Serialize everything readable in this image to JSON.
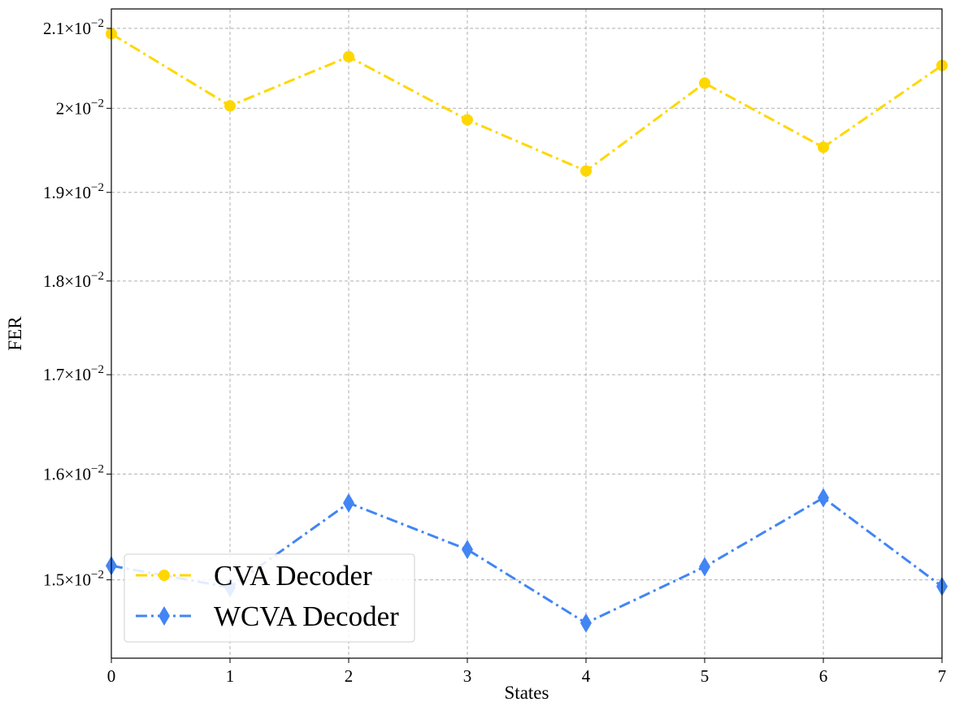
{
  "chart_data": {
    "type": "line",
    "xlabel": "States",
    "ylabel": "FER",
    "yscale": "log",
    "xlim": [
      0,
      7
    ],
    "ylim": [
      0.0143,
      0.02125
    ],
    "xticks": [
      0,
      1,
      2,
      3,
      4,
      5,
      6,
      7
    ],
    "x_tick_labels": [
      "0",
      "1",
      "2",
      "3",
      "4",
      "5",
      "6",
      "7"
    ],
    "yticks": [
      {
        "value": 0.015,
        "mantissa": "1.5",
        "exp": "−2"
      },
      {
        "value": 0.016,
        "mantissa": "1.6",
        "exp": "−2"
      },
      {
        "value": 0.017,
        "mantissa": "1.7",
        "exp": "−2"
      },
      {
        "value": 0.018,
        "mantissa": "1.8",
        "exp": "−2"
      },
      {
        "value": 0.019,
        "mantissa": "1.9",
        "exp": "−2"
      },
      {
        "value": 0.02,
        "mantissa": "2",
        "exp": "−2"
      },
      {
        "value": 0.021,
        "mantissa": "2.1",
        "exp": "−2"
      }
    ],
    "times_symbol": "×10",
    "grid": true,
    "legend_position": "lower-left",
    "x": [
      0,
      1,
      2,
      3,
      4,
      5,
      6,
      7
    ],
    "series": [
      {
        "name": "CVA Decoder",
        "marker": "circle",
        "line_style": "dash-dot",
        "color": "#FFD700",
        "values": [
          0.02093,
          0.02003,
          0.02064,
          0.01986,
          0.01925,
          0.02031,
          0.01953,
          0.02053
        ]
      },
      {
        "name": "WCVA Decoder",
        "marker": "diamond",
        "line_style": "dash-dot",
        "color": "#4285F4",
        "values": [
          0.01513,
          0.01493,
          0.01572,
          0.01528,
          0.01461,
          0.01512,
          0.01577,
          0.01494
        ]
      }
    ]
  }
}
